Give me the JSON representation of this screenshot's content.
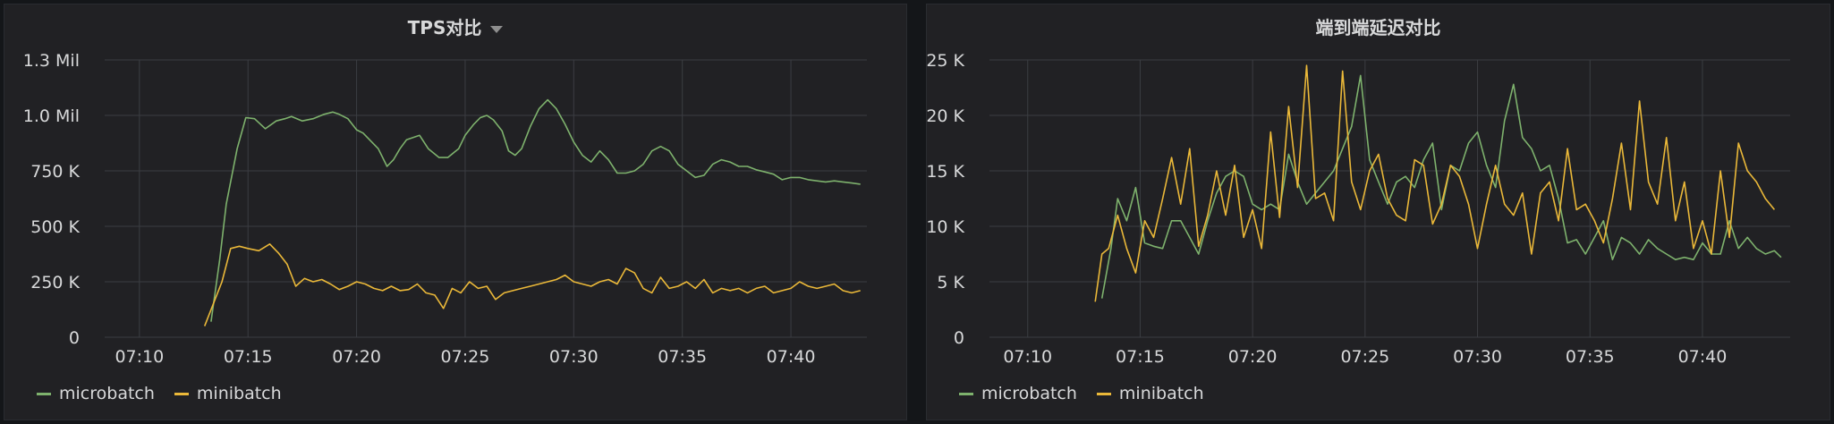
{
  "panels": [
    {
      "title": "TPS对比",
      "has_menu_caret": true,
      "legend": [
        {
          "name": "microbatch",
          "color": "#7eb26d"
        },
        {
          "name": "minibatch",
          "color": "#eab839"
        }
      ]
    },
    {
      "title": "端到端延迟对比",
      "has_menu_caret": false,
      "legend": [
        {
          "name": "microbatch",
          "color": "#7eb26d"
        },
        {
          "name": "minibatch",
          "color": "#eab839"
        }
      ]
    }
  ],
  "chart_data": [
    {
      "type": "line",
      "title": "TPS对比",
      "x_unit": "minute",
      "x_tick_labels": [
        "07:10",
        "07:15",
        "07:20",
        "07:25",
        "07:30",
        "07:35",
        "07:40"
      ],
      "x_tick_values": [
        10,
        15,
        20,
        25,
        30,
        35,
        40
      ],
      "xlim": [
        8.4,
        43.5
      ],
      "y_tick_labels": [
        "0",
        "250 K",
        "500 K",
        "750 K",
        "1.0 Mil",
        "1.3 Mil"
      ],
      "y_tick_values": [
        0,
        250000,
        500000,
        750000,
        1000000,
        1250000
      ],
      "ylim": [
        0,
        1250000
      ],
      "grid": true,
      "legend_position": "bottom-left",
      "series": [
        {
          "name": "microbatch",
          "color": "#7eb26d",
          "x": [
            13.3,
            13.7,
            14.0,
            14.5,
            14.9,
            15.3,
            15.8,
            16.3,
            16.7,
            17.0,
            17.5,
            18.0,
            18.5,
            18.9,
            19.2,
            19.6,
            20.0,
            20.3,
            20.7,
            21.0,
            21.4,
            21.7,
            22.0,
            22.3,
            22.6,
            22.9,
            23.3,
            23.8,
            24.2,
            24.7,
            25.0,
            25.4,
            25.7,
            26.0,
            26.3,
            26.7,
            27.0,
            27.3,
            27.6,
            28.0,
            28.4,
            28.8,
            29.2,
            29.6,
            30.0,
            30.4,
            30.8,
            31.2,
            31.6,
            32.0,
            32.4,
            32.8,
            33.2,
            33.6,
            34.0,
            34.4,
            34.8,
            35.2,
            35.6,
            36.0,
            36.4,
            36.8,
            37.2,
            37.6,
            38.0,
            38.4,
            38.8,
            39.2,
            39.6,
            40.0,
            40.4,
            40.8,
            41.2,
            41.6,
            42.0,
            42.4,
            42.8,
            43.2
          ],
          "y": [
            70000,
            350000,
            600000,
            850000,
            990000,
            985000,
            940000,
            975000,
            985000,
            995000,
            975000,
            985000,
            1005000,
            1015000,
            1005000,
            985000,
            935000,
            920000,
            880000,
            850000,
            770000,
            800000,
            850000,
            890000,
            900000,
            910000,
            850000,
            810000,
            810000,
            850000,
            910000,
            960000,
            990000,
            1000000,
            980000,
            930000,
            840000,
            820000,
            850000,
            950000,
            1030000,
            1070000,
            1030000,
            960000,
            880000,
            820000,
            790000,
            840000,
            800000,
            740000,
            740000,
            750000,
            780000,
            840000,
            860000,
            840000,
            780000,
            750000,
            720000,
            730000,
            780000,
            800000,
            790000,
            770000,
            770000,
            755000,
            745000,
            735000,
            710000,
            720000,
            720000,
            710000,
            705000,
            700000,
            705000,
            700000,
            695000,
            690000
          ]
        },
        {
          "name": "minibatch",
          "color": "#eab839",
          "x": [
            13.0,
            13.4,
            13.8,
            14.2,
            14.6,
            15.0,
            15.5,
            16.0,
            16.4,
            16.8,
            17.2,
            17.6,
            18.0,
            18.4,
            18.8,
            19.2,
            19.6,
            20.0,
            20.4,
            20.8,
            21.2,
            21.6,
            22.0,
            22.4,
            22.8,
            23.2,
            23.6,
            24.0,
            24.4,
            24.8,
            25.2,
            25.6,
            26.0,
            26.4,
            26.8,
            27.2,
            27.6,
            28.0,
            28.4,
            28.8,
            29.2,
            29.6,
            30.0,
            30.4,
            30.8,
            31.2,
            31.6,
            32.0,
            32.4,
            32.8,
            33.2,
            33.6,
            34.0,
            34.4,
            34.8,
            35.2,
            35.6,
            36.0,
            36.4,
            36.8,
            37.2,
            37.6,
            38.0,
            38.4,
            38.8,
            39.2,
            39.6,
            40.0,
            40.4,
            40.8,
            41.2,
            41.6,
            42.0,
            42.4,
            42.8,
            43.2
          ],
          "y": [
            50000,
            150000,
            250000,
            400000,
            410000,
            400000,
            390000,
            420000,
            380000,
            330000,
            230000,
            265000,
            250000,
            260000,
            240000,
            215000,
            230000,
            250000,
            240000,
            220000,
            210000,
            230000,
            210000,
            215000,
            240000,
            200000,
            190000,
            130000,
            220000,
            200000,
            250000,
            220000,
            230000,
            170000,
            200000,
            210000,
            220000,
            230000,
            240000,
            250000,
            260000,
            280000,
            250000,
            240000,
            230000,
            250000,
            260000,
            240000,
            310000,
            290000,
            220000,
            200000,
            270000,
            220000,
            230000,
            250000,
            220000,
            260000,
            200000,
            220000,
            210000,
            220000,
            200000,
            220000,
            230000,
            200000,
            210000,
            220000,
            250000,
            230000,
            220000,
            230000,
            240000,
            210000,
            200000,
            210000
          ]
        }
      ]
    },
    {
      "type": "line",
      "title": "端到端延迟对比",
      "x_unit": "minute",
      "x_tick_labels": [
        "07:10",
        "07:15",
        "07:20",
        "07:25",
        "07:30",
        "07:35",
        "07:40"
      ],
      "x_tick_values": [
        10,
        15,
        20,
        25,
        30,
        35,
        40
      ],
      "xlim": [
        8.3,
        43.9
      ],
      "y_tick_labels": [
        "0",
        "5 K",
        "10 K",
        "15 K",
        "20 K",
        "25 K"
      ],
      "y_tick_values": [
        0,
        5000,
        10000,
        15000,
        20000,
        25000
      ],
      "ylim": [
        0,
        25000
      ],
      "grid": true,
      "legend_position": "bottom-left",
      "series": [
        {
          "name": "microbatch",
          "color": "#7eb26d",
          "x": [
            13.3,
            13.7,
            14.0,
            14.4,
            14.8,
            15.2,
            15.6,
            16.0,
            16.4,
            16.8,
            17.2,
            17.6,
            18.0,
            18.4,
            18.8,
            19.2,
            19.6,
            20.0,
            20.4,
            20.8,
            21.2,
            21.6,
            22.0,
            22.4,
            22.8,
            23.2,
            23.6,
            24.0,
            24.4,
            24.8,
            25.2,
            25.6,
            26.0,
            26.4,
            26.8,
            27.2,
            27.6,
            28.0,
            28.4,
            28.8,
            29.2,
            29.6,
            30.0,
            30.4,
            30.8,
            31.2,
            31.6,
            32.0,
            32.4,
            32.8,
            33.2,
            33.6,
            34.0,
            34.4,
            34.8,
            35.2,
            35.6,
            36.0,
            36.4,
            36.8,
            37.2,
            37.6,
            38.0,
            38.4,
            38.8,
            39.2,
            39.6,
            40.0,
            40.4,
            40.8,
            41.2,
            41.6,
            42.0,
            42.4,
            42.8,
            43.2,
            43.5
          ],
          "y": [
            3500,
            8000,
            12500,
            10500,
            13500,
            8500,
            8200,
            8000,
            10500,
            10500,
            9000,
            7500,
            10500,
            13000,
            14500,
            15000,
            14500,
            12000,
            11500,
            12000,
            11500,
            16500,
            14000,
            12000,
            13000,
            14000,
            15000,
            17000,
            19000,
            23600,
            16000,
            14000,
            12000,
            14000,
            14500,
            13500,
            16000,
            17500,
            11500,
            15500,
            15000,
            17500,
            18500,
            15500,
            13500,
            19500,
            22800,
            18000,
            17000,
            15000,
            15500,
            12500,
            8500,
            8800,
            7500,
            9000,
            10500,
            7000,
            9000,
            8500,
            7500,
            8800,
            8000,
            7500,
            7000,
            7200,
            7000,
            8500,
            7500,
            7500,
            10500,
            8000,
            9000,
            8000,
            7500,
            7800,
            7200
          ]
        },
        {
          "name": "minibatch",
          "color": "#eab839",
          "x": [
            13.0,
            13.3,
            13.6,
            14.0,
            14.4,
            14.8,
            15.2,
            15.6,
            16.0,
            16.4,
            16.8,
            17.2,
            17.6,
            18.0,
            18.4,
            18.8,
            19.2,
            19.6,
            20.0,
            20.4,
            20.8,
            21.2,
            21.6,
            22.0,
            22.4,
            22.8,
            23.2,
            23.6,
            24.0,
            24.4,
            24.8,
            25.2,
            25.6,
            26.0,
            26.4,
            26.8,
            27.2,
            27.6,
            28.0,
            28.4,
            28.8,
            29.2,
            29.6,
            30.0,
            30.4,
            30.8,
            31.2,
            31.6,
            32.0,
            32.4,
            32.8,
            33.2,
            33.6,
            34.0,
            34.4,
            34.8,
            35.2,
            35.6,
            36.0,
            36.4,
            36.8,
            37.2,
            37.6,
            38.0,
            38.4,
            38.8,
            39.2,
            39.6,
            40.0,
            40.4,
            40.8,
            41.2,
            41.6,
            42.0,
            42.4,
            42.8,
            43.2
          ],
          "y": [
            3200,
            7500,
            8000,
            11000,
            8000,
            5800,
            10500,
            9000,
            12500,
            16200,
            12000,
            17000,
            8200,
            11000,
            15000,
            11000,
            15500,
            9000,
            11500,
            8000,
            18500,
            10800,
            20800,
            13500,
            24500,
            12500,
            13000,
            10500,
            24000,
            14000,
            11500,
            15000,
            16500,
            12500,
            11000,
            10500,
            16000,
            15500,
            10200,
            12000,
            15500,
            14500,
            12000,
            8000,
            12000,
            15500,
            12000,
            11000,
            13000,
            7500,
            13000,
            14000,
            10500,
            17000,
            11500,
            12000,
            10500,
            8500,
            12500,
            17500,
            11500,
            21300,
            14000,
            12000,
            18000,
            10500,
            14000,
            8000,
            10500,
            7500,
            15000,
            9000,
            17500,
            15000,
            14000,
            12500,
            11500
          ]
        }
      ]
    }
  ]
}
